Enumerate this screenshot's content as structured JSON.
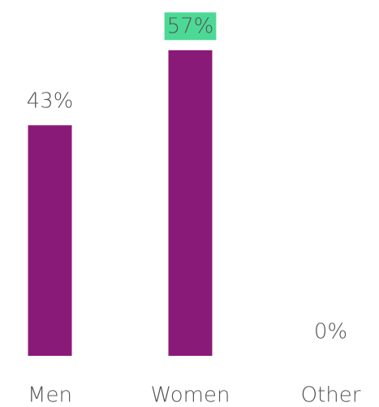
{
  "chart_data": {
    "type": "bar",
    "categories": [
      "Men",
      "Women",
      "Other"
    ],
    "values": [
      43,
      57,
      0
    ],
    "value_labels": [
      "43%",
      "57%",
      "0%"
    ],
    "color": "#8a1a78",
    "highlight": "Women",
    "highlight_color": "#4cd995"
  }
}
